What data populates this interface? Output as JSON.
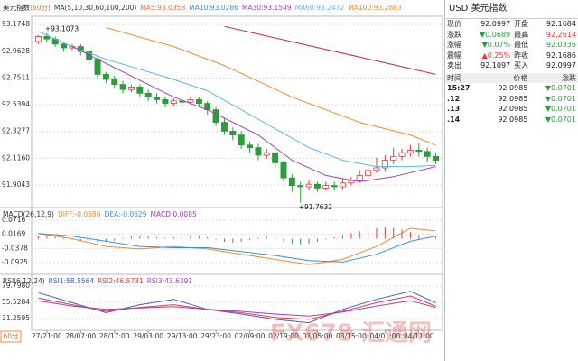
{
  "chart_data": [
    {
      "type": "candlestick",
      "title": "美元指数",
      "subtitle": "(60分)",
      "legend_title": "MA(5,10,30,60,100,200)",
      "legend": [
        {
          "label": "MA5:93.0358",
          "color": "#e8703a"
        },
        {
          "label": "MA10:93.0286",
          "color": "#3b8fd9"
        },
        {
          "label": "MA30:93.1549",
          "color": "#a040c0"
        },
        {
          "label": "MA60:93.2472",
          "color": "#5bb7e8"
        },
        {
          "label": "MA100:93.2883",
          "color": "#f08a30"
        }
      ],
      "xlim": [
        -0.8,
        47.8
      ],
      "xticks": [
        {
          "value": 1,
          "label": "27/21:00"
        },
        {
          "value": 5,
          "label": "28/07:00"
        },
        {
          "value": 9,
          "label": "28/17:00"
        },
        {
          "value": 13,
          "label": "29/03:00"
        },
        {
          "value": 17,
          "label": "29/13:00"
        },
        {
          "value": 21,
          "label": "29/23:00"
        },
        {
          "value": 25,
          "label": "02/09:00"
        },
        {
          "value": 29,
          "label": "02/19:00"
        },
        {
          "value": 33,
          "label": "03/05:00"
        },
        {
          "value": 37,
          "label": "03/15:00"
        },
        {
          "value": 41,
          "label": "04/01:00"
        },
        {
          "value": 45,
          "label": "04/11:00"
        }
      ],
      "ylim": [
        91.74,
        93.24
      ],
      "yticks": [
        93.1748,
        92.9628,
        92.7511,
        92.5394,
        92.3277,
        {
          "value": 92.116,
          "label": "92.1160"
        },
        91.9043
      ],
      "grid": true,
      "up_color": "#e8383d",
      "down_color": "#2a9d3a",
      "candles": {
        "open": [
          93.04,
          93.08,
          93.06,
          93.02,
          92.99,
          93.0,
          92.96,
          92.9,
          92.78,
          92.74,
          92.7,
          92.66,
          92.68,
          92.63,
          92.6,
          92.58,
          92.55,
          92.57,
          92.56,
          92.58,
          92.55,
          92.5,
          92.4,
          92.33,
          92.3,
          92.22,
          92.2,
          92.14,
          92.16,
          92.08,
          91.96,
          91.9,
          91.89,
          91.91,
          91.88,
          91.9,
          91.89,
          91.92,
          91.94,
          91.98,
          92.02,
          92.04,
          92.1,
          92.13,
          92.16,
          92.18,
          92.17,
          92.13
        ],
        "high": [
          93.09,
          93.1073,
          93.08,
          93.04,
          93.02,
          93.02,
          92.98,
          92.92,
          92.8,
          92.77,
          92.73,
          92.7,
          92.7,
          92.66,
          92.63,
          92.6,
          92.59,
          92.6,
          92.6,
          92.6,
          92.57,
          92.52,
          92.43,
          92.36,
          92.33,
          92.25,
          92.23,
          92.19,
          92.19,
          92.1,
          91.99,
          91.93,
          91.94,
          91.93,
          91.93,
          91.93,
          91.95,
          91.97,
          92.02,
          92.06,
          92.12,
          92.14,
          92.2,
          92.19,
          92.22,
          92.24,
          92.2,
          92.16
        ],
        "low": [
          93.02,
          93.04,
          93.0,
          92.96,
          92.97,
          92.93,
          92.86,
          92.74,
          92.71,
          92.67,
          92.63,
          92.64,
          92.6,
          92.57,
          92.55,
          92.52,
          92.53,
          92.53,
          92.54,
          92.52,
          92.46,
          92.37,
          92.3,
          92.26,
          92.19,
          92.16,
          92.1,
          92.11,
          92.04,
          91.93,
          91.85,
          91.7632,
          91.86,
          91.85,
          91.86,
          91.86,
          91.87,
          91.9,
          91.92,
          91.95,
          92.0,
          92.01,
          92.07,
          92.1,
          92.13,
          92.13,
          92.09,
          92.07
        ],
        "close": [
          93.08,
          93.06,
          93.02,
          92.99,
          93.0,
          92.96,
          92.9,
          92.78,
          92.74,
          92.7,
          92.66,
          92.68,
          92.63,
          92.6,
          92.58,
          92.55,
          92.57,
          92.56,
          92.58,
          92.55,
          92.5,
          92.4,
          92.33,
          92.3,
          92.22,
          92.2,
          92.14,
          92.16,
          92.08,
          91.96,
          91.9,
          91.89,
          91.91,
          91.88,
          91.9,
          91.89,
          91.92,
          91.94,
          91.98,
          92.02,
          92.04,
          92.1,
          92.13,
          92.16,
          92.18,
          92.17,
          92.13,
          92.1
        ]
      },
      "annotations": [
        "+93.1073",
        "+91.7632"
      ],
      "series": [
        {
          "color": "#5bb7e8",
          "x": [
            0,
            4,
            8,
            12,
            16,
            20,
            24,
            28,
            32,
            36,
            40,
            44,
            47
          ],
          "values": [
            93.12,
            93.0,
            92.9,
            92.82,
            92.74,
            92.65,
            92.5,
            92.35,
            92.2,
            92.1,
            92.05,
            92.05,
            92.06
          ]
        },
        {
          "color": "#a040c0",
          "x": [
            4,
            10,
            16,
            20,
            26,
            30,
            34,
            38,
            42,
            47
          ],
          "values": [
            93.0,
            92.8,
            92.6,
            92.5,
            92.3,
            92.1,
            91.98,
            91.93,
            91.97,
            92.05
          ]
        },
        {
          "color": "#f08a30",
          "x": [
            8,
            16,
            22,
            30,
            38,
            44,
            47
          ],
          "values": [
            93.15,
            93.0,
            92.85,
            92.6,
            92.4,
            92.3,
            92.22
          ]
        },
        {
          "color": "#d8283a",
          "x": [
            22,
            47
          ],
          "values": [
            93.16,
            92.78
          ]
        }
      ]
    },
    {
      "type": "macd",
      "legend_title": "MACD(26,12,9)",
      "legend": [
        {
          "label": "DIFF:-0.0586",
          "color": "#f08a30"
        },
        {
          "label": "DEA:-0.0629",
          "color": "#3b8fd9"
        },
        {
          "label": "MACD:0.0085",
          "color": "#a040c0"
        }
      ],
      "xlim": [
        -0.8,
        47.8
      ],
      "ylim": [
        -0.131,
        0.1135
      ],
      "yticks": [
        0.0716,
        0.0169,
        -0.0378,
        -0.0925
      ],
      "grid": true,
      "up_color": "#e8383d",
      "down_color": "#2a9d3a",
      "bars": [
        0.01,
        0.012,
        0.008,
        0.004,
        -0.004,
        -0.01,
        -0.014,
        -0.016,
        -0.012,
        -0.008,
        0.004,
        0.01,
        0.012,
        0.01,
        0.006,
        0.004,
        0.006,
        0.01,
        0.014,
        0.012,
        0.006,
        -0.004,
        -0.012,
        -0.016,
        -0.012,
        -0.006,
        0.004,
        0.008,
        0.004,
        -0.01,
        -0.02,
        -0.024,
        -0.02,
        -0.012,
        -0.004,
        0.006,
        0.014,
        0.022,
        0.028,
        0.034,
        0.04,
        0.044,
        0.042,
        0.036,
        0.026,
        0.014,
        0.004,
        0.0085
      ],
      "series": [
        {
          "color": "#f08a30",
          "x": [
            0,
            4,
            8,
            12,
            16,
            20,
            24,
            28,
            32,
            36,
            40,
            44,
            47
          ],
          "values": [
            0.02,
            0.0,
            -0.03,
            -0.04,
            -0.03,
            -0.04,
            -0.06,
            -0.08,
            -0.1,
            -0.08,
            -0.03,
            0.04,
            0.03
          ]
        },
        {
          "color": "#3b8fd9",
          "x": [
            0,
            4,
            8,
            12,
            16,
            20,
            24,
            28,
            32,
            36,
            40,
            44,
            47
          ],
          "values": [
            0.02,
            0.01,
            -0.01,
            -0.03,
            -0.035,
            -0.035,
            -0.05,
            -0.065,
            -0.085,
            -0.09,
            -0.06,
            -0.01,
            0.01
          ]
        }
      ]
    },
    {
      "type": "rsi",
      "legend_title": "RSI(6,12,24)",
      "legend": [
        {
          "label": "RSI1:58.5564",
          "color": "#3b5fd9"
        },
        {
          "label": "RSI2:46.5731",
          "color": "#e8383d"
        },
        {
          "label": "RSI3:43.6391",
          "color": "#a040c0"
        }
      ],
      "xlim": [
        -0.8,
        47.8
      ],
      "ylim": [
        13.73,
        94.6
      ],
      "yticks": [
        {
          "value": 79.798,
          "label": "79.7980"
        },
        55.5284,
        31.2595
      ],
      "grid": true,
      "series": [
        {
          "color": "#3b5fd9",
          "x": [
            0,
            4,
            8,
            12,
            16,
            20,
            24,
            28,
            32,
            36,
            40,
            44,
            47
          ],
          "values": [
            70,
            55,
            40,
            52,
            60,
            45,
            38,
            30,
            25,
            45,
            60,
            72,
            55
          ]
        },
        {
          "color": "#e8383d",
          "x": [
            0,
            4,
            8,
            12,
            16,
            20,
            24,
            28,
            32,
            36,
            40,
            44,
            47
          ],
          "values": [
            62,
            52,
            42,
            48,
            52,
            45,
            40,
            33,
            30,
            42,
            55,
            65,
            50
          ]
        },
        {
          "color": "#a040c0",
          "x": [
            0,
            4,
            8,
            12,
            16,
            20,
            24,
            28,
            32,
            36,
            40,
            44,
            47
          ],
          "values": [
            58,
            50,
            45,
            47,
            49,
            45,
            42,
            38,
            35,
            41,
            50,
            58,
            48
          ]
        }
      ]
    }
  ],
  "period_button": "60分",
  "watermark": "FX678 汇通网",
  "quote": {
    "symbol": "USD",
    "name": "美元指数",
    "rows": [
      [
        "现价",
        "92.0997",
        "开盘",
        "92.1684"
      ],
      [
        "涨跌",
        "▼0.0689",
        "最高",
        "92.2614"
      ],
      [
        "涨幅",
        "▼0.07%",
        "最低",
        "92.0336"
      ],
      [
        "震幅",
        "▲0.25%",
        "昨收",
        "92.1686"
      ],
      [
        "卖出",
        "92.1097",
        "买入",
        "92.0997"
      ]
    ]
  },
  "trades": {
    "header": [
      "时间",
      "价格",
      "涨跌"
    ],
    "rows": [
      [
        "15:27",
        "92.0985",
        "▼0.0701"
      ],
      [
        ".12",
        "92.0985",
        "▼0.0701"
      ],
      [
        ".13",
        "92.0985",
        "▼0.0701"
      ],
      [
        ".14",
        "92.0985",
        "▼0.0701"
      ]
    ]
  }
}
